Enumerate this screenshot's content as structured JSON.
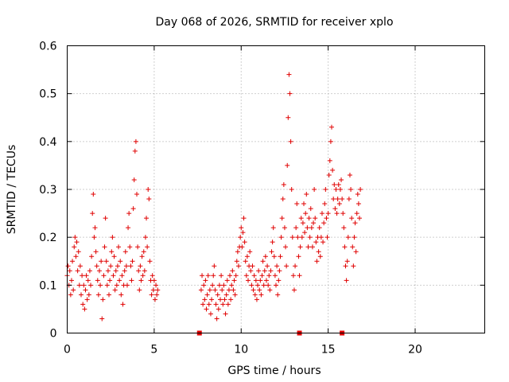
{
  "chart_data": {
    "type": "scatter",
    "title": "Day 068 of 2026, SRMTID for receiver xplo",
    "xlabel": "GPS time / hours",
    "ylabel": "SRMTID / TECUs",
    "xlim": [
      0,
      24
    ],
    "ylim": [
      0,
      0.6
    ],
    "xticks": [
      0,
      5,
      10,
      15,
      20
    ],
    "xtick_labels": [
      "0",
      "5",
      "10",
      "15",
      "20"
    ],
    "yticks": [
      0,
      0.1,
      0.2,
      0.3,
      0.4,
      0.5,
      0.6
    ],
    "ytick_labels": [
      "0",
      "0.1",
      "0.2",
      "0.3",
      "0.4",
      "0.5",
      "0.6"
    ],
    "grid": true,
    "series": [
      {
        "name": "SRMTID",
        "marker": "plus",
        "color": "#e00000",
        "points": [
          [
            0.0,
            0.12
          ],
          [
            0.05,
            0.14
          ],
          [
            0.1,
            0.1
          ],
          [
            0.15,
            0.13
          ],
          [
            0.2,
            0.08
          ],
          [
            0.25,
            0.11
          ],
          [
            0.3,
            0.15
          ],
          [
            0.35,
            0.09
          ],
          [
            0.4,
            0.18
          ],
          [
            0.45,
            0.2
          ],
          [
            0.5,
            0.16
          ],
          [
            0.55,
            0.19
          ],
          [
            0.6,
            0.13
          ],
          [
            0.65,
            0.17
          ],
          [
            0.7,
            0.1
          ],
          [
            0.75,
            0.14
          ],
          [
            0.8,
            0.08
          ],
          [
            0.85,
            0.12
          ],
          [
            0.9,
            0.06
          ],
          [
            0.95,
            0.1
          ],
          [
            1.0,
            0.05
          ],
          [
            1.05,
            0.09
          ],
          [
            1.1,
            0.12
          ],
          [
            1.15,
            0.07
          ],
          [
            1.2,
            0.11
          ],
          [
            1.25,
            0.08
          ],
          [
            1.3,
            0.13
          ],
          [
            1.35,
            0.1
          ],
          [
            1.4,
            0.16
          ],
          [
            1.45,
            0.25
          ],
          [
            1.5,
            0.29
          ],
          [
            1.55,
            0.2
          ],
          [
            1.6,
            0.22
          ],
          [
            1.65,
            0.17
          ],
          [
            1.7,
            0.14
          ],
          [
            1.75,
            0.11
          ],
          [
            1.8,
            0.08
          ],
          [
            1.85,
            0.13
          ],
          [
            1.9,
            0.1
          ],
          [
            1.95,
            0.15
          ],
          [
            2.0,
            0.03
          ],
          [
            2.05,
            0.07
          ],
          [
            2.1,
            0.12
          ],
          [
            2.15,
            0.18
          ],
          [
            2.2,
            0.24
          ],
          [
            2.25,
            0.15
          ],
          [
            2.3,
            0.1
          ],
          [
            2.35,
            0.13
          ],
          [
            2.4,
            0.08
          ],
          [
            2.45,
            0.11
          ],
          [
            2.5,
            0.14
          ],
          [
            2.55,
            0.17
          ],
          [
            2.6,
            0.2
          ],
          [
            2.65,
            0.12
          ],
          [
            2.7,
            0.16
          ],
          [
            2.75,
            0.09
          ],
          [
            2.8,
            0.13
          ],
          [
            2.85,
            0.1
          ],
          [
            2.9,
            0.14
          ],
          [
            2.95,
            0.18
          ],
          [
            3.0,
            0.11
          ],
          [
            3.05,
            0.15
          ],
          [
            3.1,
            0.08
          ],
          [
            3.15,
            0.12
          ],
          [
            3.2,
            0.06
          ],
          [
            3.25,
            0.1
          ],
          [
            3.3,
            0.13
          ],
          [
            3.35,
            0.17
          ],
          [
            3.4,
            0.14
          ],
          [
            3.45,
            0.1
          ],
          [
            3.5,
            0.22
          ],
          [
            3.55,
            0.25
          ],
          [
            3.6,
            0.18
          ],
          [
            3.65,
            0.14
          ],
          [
            3.7,
            0.11
          ],
          [
            3.75,
            0.15
          ],
          [
            3.8,
            0.26
          ],
          [
            3.85,
            0.32
          ],
          [
            3.9,
            0.38
          ],
          [
            3.95,
            0.4
          ],
          [
            4.0,
            0.29
          ],
          [
            4.05,
            0.18
          ],
          [
            4.1,
            0.13
          ],
          [
            4.15,
            0.09
          ],
          [
            4.2,
            0.14
          ],
          [
            4.25,
            0.11
          ],
          [
            4.3,
            0.16
          ],
          [
            4.35,
            0.12
          ],
          [
            4.4,
            0.17
          ],
          [
            4.45,
            0.13
          ],
          [
            4.5,
            0.2
          ],
          [
            4.55,
            0.24
          ],
          [
            4.6,
            0.18
          ],
          [
            4.65,
            0.3
          ],
          [
            4.7,
            0.28
          ],
          [
            4.75,
            0.15
          ],
          [
            4.8,
            0.11
          ],
          [
            4.85,
            0.08
          ],
          [
            4.9,
            0.12
          ],
          [
            4.95,
            0.09
          ],
          [
            5.0,
            0.11
          ],
          [
            5.05,
            0.07
          ],
          [
            5.1,
            0.1
          ],
          [
            5.15,
            0.08
          ],
          [
            5.2,
            0.09
          ],
          [
            7.7,
            0.09
          ],
          [
            7.75,
            0.12
          ],
          [
            7.8,
            0.06
          ],
          [
            7.85,
            0.1
          ],
          [
            7.9,
            0.07
          ],
          [
            7.95,
            0.11
          ],
          [
            8.0,
            0.05
          ],
          [
            8.05,
            0.08
          ],
          [
            8.1,
            0.12
          ],
          [
            8.15,
            0.06
          ],
          [
            8.2,
            0.09
          ],
          [
            8.25,
            0.04
          ],
          [
            8.3,
            0.07
          ],
          [
            8.35,
            0.1
          ],
          [
            8.4,
            0.12
          ],
          [
            8.45,
            0.14
          ],
          [
            8.5,
            0.09
          ],
          [
            8.55,
            0.06
          ],
          [
            8.6,
            0.03
          ],
          [
            8.65,
            0.08
          ],
          [
            8.7,
            0.05
          ],
          [
            8.75,
            0.1
          ],
          [
            8.8,
            0.07
          ],
          [
            8.85,
            0.12
          ],
          [
            8.9,
            0.09
          ],
          [
            8.95,
            0.06
          ],
          [
            9.0,
            0.1
          ],
          [
            9.05,
            0.07
          ],
          [
            9.1,
            0.04
          ],
          [
            9.15,
            0.08
          ],
          [
            9.2,
            0.11
          ],
          [
            9.25,
            0.06
          ],
          [
            9.3,
            0.09
          ],
          [
            9.35,
            0.12
          ],
          [
            9.4,
            0.07
          ],
          [
            9.45,
            0.1
          ],
          [
            9.5,
            0.13
          ],
          [
            9.55,
            0.09
          ],
          [
            9.6,
            0.11
          ],
          [
            9.65,
            0.08
          ],
          [
            9.7,
            0.12
          ],
          [
            9.75,
            0.15
          ],
          [
            9.8,
            0.17
          ],
          [
            9.85,
            0.14
          ],
          [
            9.9,
            0.18
          ],
          [
            9.95,
            0.2
          ],
          [
            10.0,
            0.22
          ],
          [
            10.05,
            0.18
          ],
          [
            10.1,
            0.21
          ],
          [
            10.15,
            0.24
          ],
          [
            10.2,
            0.19
          ],
          [
            10.25,
            0.15
          ],
          [
            10.3,
            0.12
          ],
          [
            10.35,
            0.16
          ],
          [
            10.4,
            0.11
          ],
          [
            10.45,
            0.14
          ],
          [
            10.5,
            0.17
          ],
          [
            10.55,
            0.13
          ],
          [
            10.6,
            0.1
          ],
          [
            10.65,
            0.14
          ],
          [
            10.7,
            0.09
          ],
          [
            10.75,
            0.12
          ],
          [
            10.8,
            0.08
          ],
          [
            10.85,
            0.11
          ],
          [
            10.9,
            0.07
          ],
          [
            10.95,
            0.1
          ],
          [
            11.0,
            0.13
          ],
          [
            11.05,
            0.09
          ],
          [
            11.1,
            0.11
          ],
          [
            11.15,
            0.08
          ],
          [
            11.2,
            0.12
          ],
          [
            11.25,
            0.15
          ],
          [
            11.3,
            0.1
          ],
          [
            11.35,
            0.13
          ],
          [
            11.4,
            0.16
          ],
          [
            11.45,
            0.11
          ],
          [
            11.5,
            0.14
          ],
          [
            11.55,
            0.1
          ],
          [
            11.6,
            0.12
          ],
          [
            11.65,
            0.09
          ],
          [
            11.7,
            0.13
          ],
          [
            11.75,
            0.17
          ],
          [
            11.8,
            0.19
          ],
          [
            11.85,
            0.22
          ],
          [
            11.9,
            0.16
          ],
          [
            11.95,
            0.12
          ],
          [
            12.0,
            0.1
          ],
          [
            12.05,
            0.14
          ],
          [
            12.1,
            0.08
          ],
          [
            12.15,
            0.11
          ],
          [
            12.2,
            0.13
          ],
          [
            12.25,
            0.16
          ],
          [
            12.3,
            0.2
          ],
          [
            12.35,
            0.24
          ],
          [
            12.4,
            0.28
          ],
          [
            12.45,
            0.31
          ],
          [
            12.5,
            0.22
          ],
          [
            12.55,
            0.18
          ],
          [
            12.6,
            0.14
          ],
          [
            12.65,
            0.35
          ],
          [
            12.7,
            0.45
          ],
          [
            12.75,
            0.54
          ],
          [
            12.8,
            0.5
          ],
          [
            12.85,
            0.4
          ],
          [
            12.9,
            0.3
          ],
          [
            12.95,
            0.2
          ],
          [
            13.0,
            0.12
          ],
          [
            13.05,
            0.09
          ],
          [
            13.1,
            0.14
          ],
          [
            13.15,
            0.22
          ],
          [
            13.2,
            0.27
          ],
          [
            13.25,
            0.2
          ],
          [
            13.3,
            0.16
          ],
          [
            13.35,
            0.12
          ],
          [
            13.4,
            0.18
          ],
          [
            13.45,
            0.24
          ],
          [
            13.5,
            0.2
          ],
          [
            13.55,
            0.23
          ],
          [
            13.6,
            0.27
          ],
          [
            13.65,
            0.21
          ],
          [
            13.7,
            0.25
          ],
          [
            13.75,
            0.29
          ],
          [
            13.8,
            0.22
          ],
          [
            13.85,
            0.18
          ],
          [
            13.9,
            0.24
          ],
          [
            13.95,
            0.2
          ],
          [
            14.0,
            0.26
          ],
          [
            14.05,
            0.22
          ],
          [
            14.1,
            0.18
          ],
          [
            14.15,
            0.23
          ],
          [
            14.2,
            0.3
          ],
          [
            14.25,
            0.24
          ],
          [
            14.3,
            0.19
          ],
          [
            14.35,
            0.15
          ],
          [
            14.4,
            0.2
          ],
          [
            14.45,
            0.17
          ],
          [
            14.5,
            0.22
          ],
          [
            14.55,
            0.16
          ],
          [
            14.6,
            0.2
          ],
          [
            14.65,
            0.25
          ],
          [
            14.7,
            0.19
          ],
          [
            14.75,
            0.23
          ],
          [
            14.8,
            0.27
          ],
          [
            14.85,
            0.3
          ],
          [
            14.9,
            0.24
          ],
          [
            14.95,
            0.2
          ],
          [
            15.0,
            0.25
          ],
          [
            15.05,
            0.33
          ],
          [
            15.1,
            0.36
          ],
          [
            15.15,
            0.4
          ],
          [
            15.2,
            0.43
          ],
          [
            15.25,
            0.34
          ],
          [
            15.3,
            0.28
          ],
          [
            15.35,
            0.31
          ],
          [
            15.4,
            0.26
          ],
          [
            15.45,
            0.3
          ],
          [
            15.5,
            0.25
          ],
          [
            15.55,
            0.28
          ],
          [
            15.6,
            0.31
          ],
          [
            15.65,
            0.27
          ],
          [
            15.7,
            0.3
          ],
          [
            15.75,
            0.32
          ],
          [
            15.8,
            0.28
          ],
          [
            15.85,
            0.25
          ],
          [
            15.9,
            0.22
          ],
          [
            15.95,
            0.18
          ],
          [
            16.0,
            0.14
          ],
          [
            16.05,
            0.11
          ],
          [
            16.1,
            0.15
          ],
          [
            16.15,
            0.2
          ],
          [
            16.2,
            0.28
          ],
          [
            16.25,
            0.33
          ],
          [
            16.3,
            0.3
          ],
          [
            16.35,
            0.24
          ],
          [
            16.4,
            0.18
          ],
          [
            16.45,
            0.14
          ],
          [
            16.5,
            0.2
          ],
          [
            16.55,
            0.23
          ],
          [
            16.6,
            0.17
          ],
          [
            16.65,
            0.25
          ],
          [
            16.7,
            0.29
          ],
          [
            16.75,
            0.27
          ],
          [
            16.8,
            0.24
          ],
          [
            16.85,
            0.3
          ]
        ]
      }
    ],
    "gap_markers_x": [
      7.6,
      13.35,
      15.8
    ]
  }
}
